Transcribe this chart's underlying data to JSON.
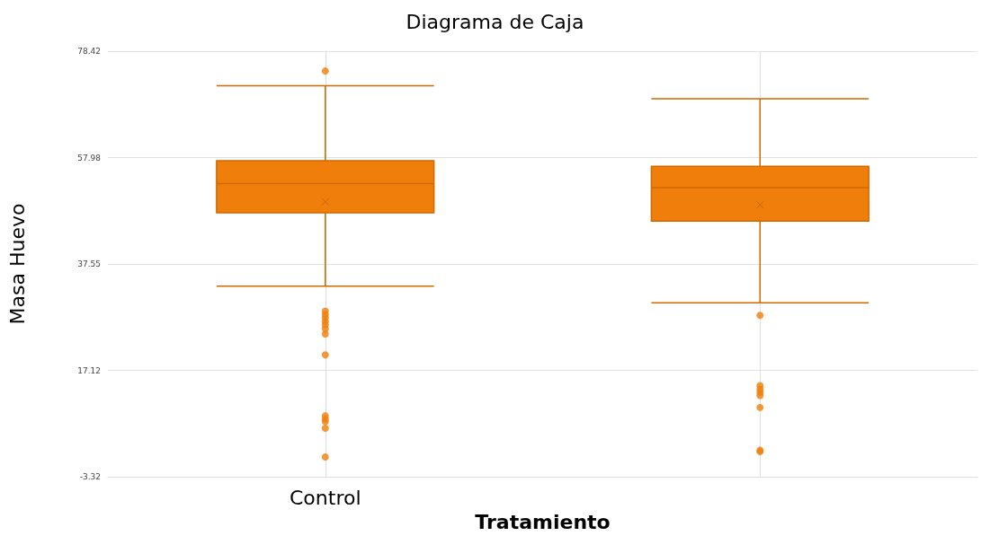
{
  "chart_data": {
    "type": "box",
    "title": "Diagrama de Caja",
    "xlabel": "Tratamiento",
    "ylabel": "Masa Huevo",
    "categories": [
      "Control",
      null
    ],
    "series": [
      {
        "color": "#ef7f0a",
        "boxes": [
          {
            "low": 33.3,
            "q1": 47.4,
            "median": 53.0,
            "q3": 57.4,
            "high": 71.8,
            "mean": 49.5,
            "outliers": [
              74.6,
              28.5,
              27.8,
              27.2,
              26.5,
              25.9,
              25.1,
              24.1,
              20.1,
              8.4,
              7.8,
              7.3,
              6.0,
              0.5
            ]
          },
          {
            "low": 30.1,
            "q1": 45.8,
            "median": 52.2,
            "q3": 56.3,
            "high": 69.3,
            "mean": 48.9,
            "outliers": [
              27.7,
              14.2,
              13.5,
              12.9,
              12.3,
              10.0,
              1.8,
              1.5
            ]
          }
        ]
      }
    ],
    "ylim": [
      -3.32,
      78.42
    ],
    "yticks": [
      -3.32,
      17.12,
      37.55,
      57.98,
      78.42
    ],
    "grid": true
  }
}
